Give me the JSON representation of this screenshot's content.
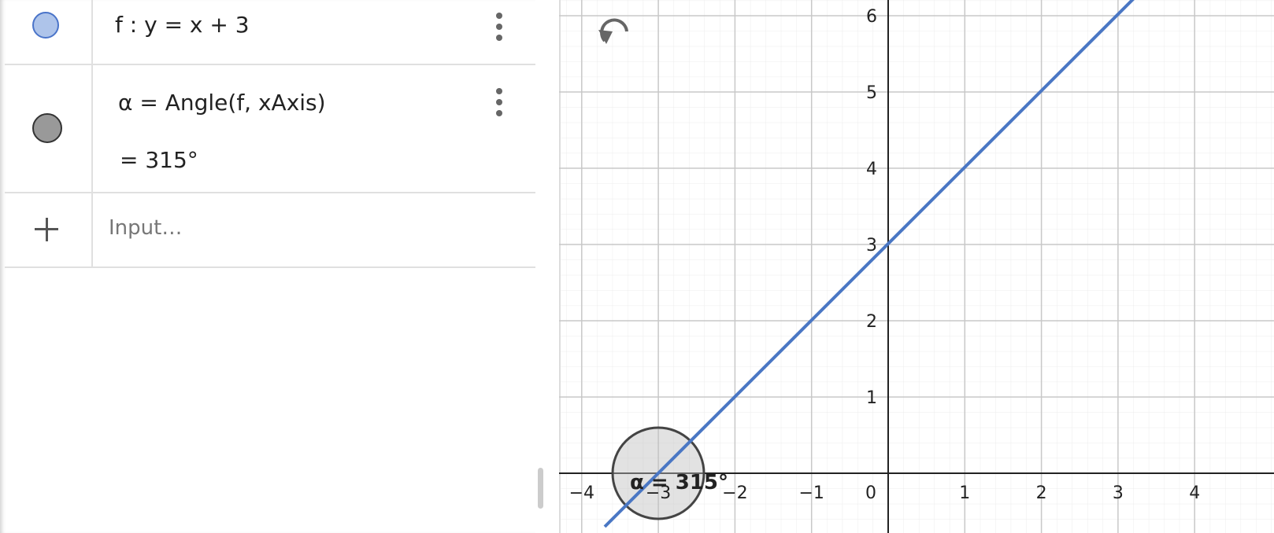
{
  "algebra": {
    "items": [
      {
        "definition": "f : y = x + 3"
      },
      {
        "definition": "α = Angle(f, xAxis)",
        "value": "= 315°"
      }
    ],
    "input_placeholder": "Input…"
  },
  "graphics": {
    "xticks": [
      {
        "value": -4,
        "label": "−4"
      },
      {
        "value": -3,
        "label": "−3"
      },
      {
        "value": -2,
        "label": "−2"
      },
      {
        "value": -1,
        "label": "−1"
      },
      0,
      1,
      2,
      3,
      4
    ],
    "yticks": [
      1,
      2,
      3,
      4,
      5,
      6
    ],
    "angle_label": "α = 315°"
  }
}
